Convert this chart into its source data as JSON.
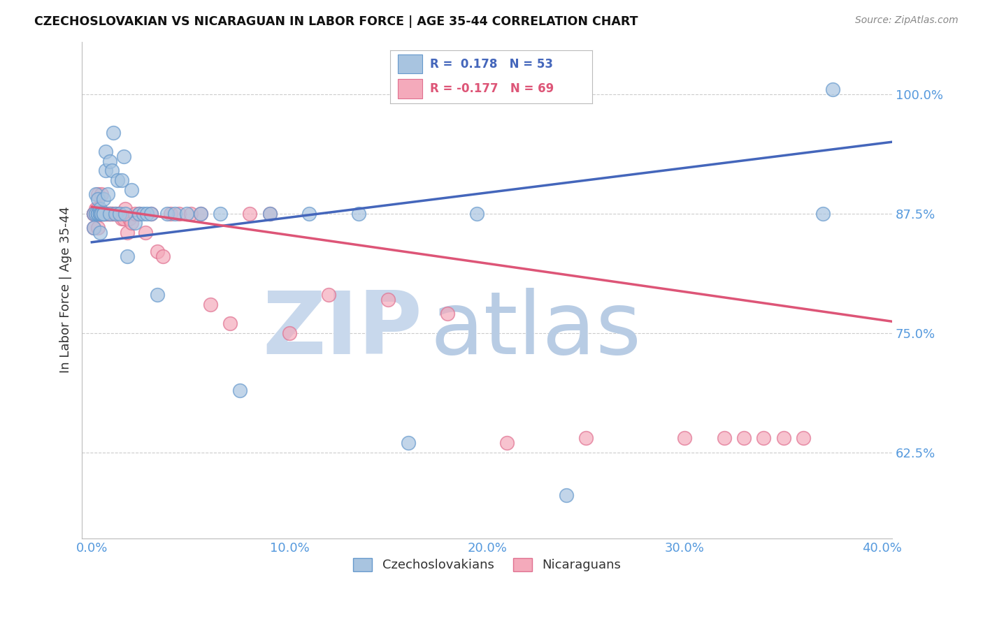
{
  "title": "CZECHOSLOVAKIAN VS NICARAGUAN IN LABOR FORCE | AGE 35-44 CORRELATION CHART",
  "source": "Source: ZipAtlas.com",
  "ylabel": "In Labor Force | Age 35-44",
  "x_tick_labels": [
    "0.0%",
    "",
    "10.0%",
    "",
    "20.0%",
    "",
    "30.0%",
    "",
    "40.0%"
  ],
  "x_tick_values": [
    0.0,
    0.05,
    0.1,
    0.15,
    0.2,
    0.25,
    0.3,
    0.35,
    0.4
  ],
  "y_tick_labels": [
    "62.5%",
    "75.0%",
    "87.5%",
    "100.0%"
  ],
  "y_tick_values": [
    0.625,
    0.75,
    0.875,
    1.0
  ],
  "xlim": [
    -0.005,
    0.405
  ],
  "ylim": [
    0.535,
    1.055
  ],
  "blue_color": "#A8C4E0",
  "pink_color": "#F4AABB",
  "blue_edge_color": "#6699CC",
  "pink_edge_color": "#E07090",
  "blue_line_color": "#4466BB",
  "pink_line_color": "#DD5577",
  "watermark_zip_color": "#C8D8EC",
  "watermark_atlas_color": "#B8CCE4",
  "background_color": "#FFFFFF",
  "grid_color": "#CCCCCC",
  "title_color": "#111111",
  "tick_label_color": "#5599DD",
  "blue_trend_x": [
    0.0,
    0.405
  ],
  "blue_trend_y": [
    0.845,
    0.95
  ],
  "pink_trend_x": [
    0.0,
    0.405
  ],
  "pink_trend_y": [
    0.882,
    0.762
  ],
  "czech_x": [
    0.001,
    0.001,
    0.002,
    0.002,
    0.003,
    0.003,
    0.003,
    0.003,
    0.004,
    0.004,
    0.004,
    0.004,
    0.004,
    0.005,
    0.005,
    0.006,
    0.006,
    0.006,
    0.007,
    0.007,
    0.008,
    0.009,
    0.009,
    0.01,
    0.011,
    0.012,
    0.013,
    0.014,
    0.015,
    0.016,
    0.017,
    0.018,
    0.02,
    0.022,
    0.024,
    0.026,
    0.028,
    0.03,
    0.033,
    0.038,
    0.042,
    0.048,
    0.055,
    0.065,
    0.075,
    0.09,
    0.11,
    0.135,
    0.16,
    0.195,
    0.24,
    0.37,
    0.375
  ],
  "czech_y": [
    0.875,
    0.86,
    0.895,
    0.875,
    0.875,
    0.875,
    0.875,
    0.89,
    0.875,
    0.88,
    0.875,
    0.875,
    0.855,
    0.875,
    0.875,
    0.89,
    0.875,
    0.875,
    0.94,
    0.92,
    0.895,
    0.93,
    0.875,
    0.92,
    0.96,
    0.875,
    0.91,
    0.875,
    0.91,
    0.935,
    0.875,
    0.83,
    0.9,
    0.865,
    0.875,
    0.875,
    0.875,
    0.875,
    0.79,
    0.875,
    0.875,
    0.875,
    0.875,
    0.875,
    0.69,
    0.875,
    0.875,
    0.875,
    0.635,
    0.875,
    0.58,
    0.875,
    1.005
  ],
  "nicara_x": [
    0.001,
    0.001,
    0.001,
    0.001,
    0.002,
    0.002,
    0.002,
    0.002,
    0.003,
    0.003,
    0.003,
    0.003,
    0.003,
    0.003,
    0.004,
    0.004,
    0.004,
    0.004,
    0.005,
    0.005,
    0.005,
    0.005,
    0.006,
    0.006,
    0.006,
    0.007,
    0.007,
    0.008,
    0.008,
    0.009,
    0.009,
    0.01,
    0.01,
    0.011,
    0.012,
    0.013,
    0.014,
    0.015,
    0.016,
    0.017,
    0.018,
    0.019,
    0.02,
    0.022,
    0.024,
    0.027,
    0.03,
    0.033,
    0.036,
    0.04,
    0.044,
    0.05,
    0.055,
    0.06,
    0.07,
    0.08,
    0.09,
    0.1,
    0.12,
    0.15,
    0.18,
    0.21,
    0.25,
    0.3,
    0.32,
    0.33,
    0.34,
    0.35,
    0.36
  ],
  "nicara_y": [
    0.875,
    0.875,
    0.875,
    0.86,
    0.875,
    0.88,
    0.875,
    0.875,
    0.895,
    0.88,
    0.875,
    0.875,
    0.875,
    0.86,
    0.875,
    0.875,
    0.875,
    0.875,
    0.895,
    0.875,
    0.875,
    0.875,
    0.875,
    0.875,
    0.875,
    0.875,
    0.875,
    0.875,
    0.875,
    0.875,
    0.875,
    0.875,
    0.875,
    0.875,
    0.875,
    0.875,
    0.875,
    0.87,
    0.87,
    0.88,
    0.855,
    0.87,
    0.865,
    0.875,
    0.875,
    0.855,
    0.875,
    0.835,
    0.83,
    0.875,
    0.875,
    0.875,
    0.875,
    0.78,
    0.76,
    0.875,
    0.875,
    0.75,
    0.79,
    0.785,
    0.77,
    0.635,
    0.64,
    0.64,
    0.64,
    0.64,
    0.64,
    0.64,
    0.64
  ]
}
